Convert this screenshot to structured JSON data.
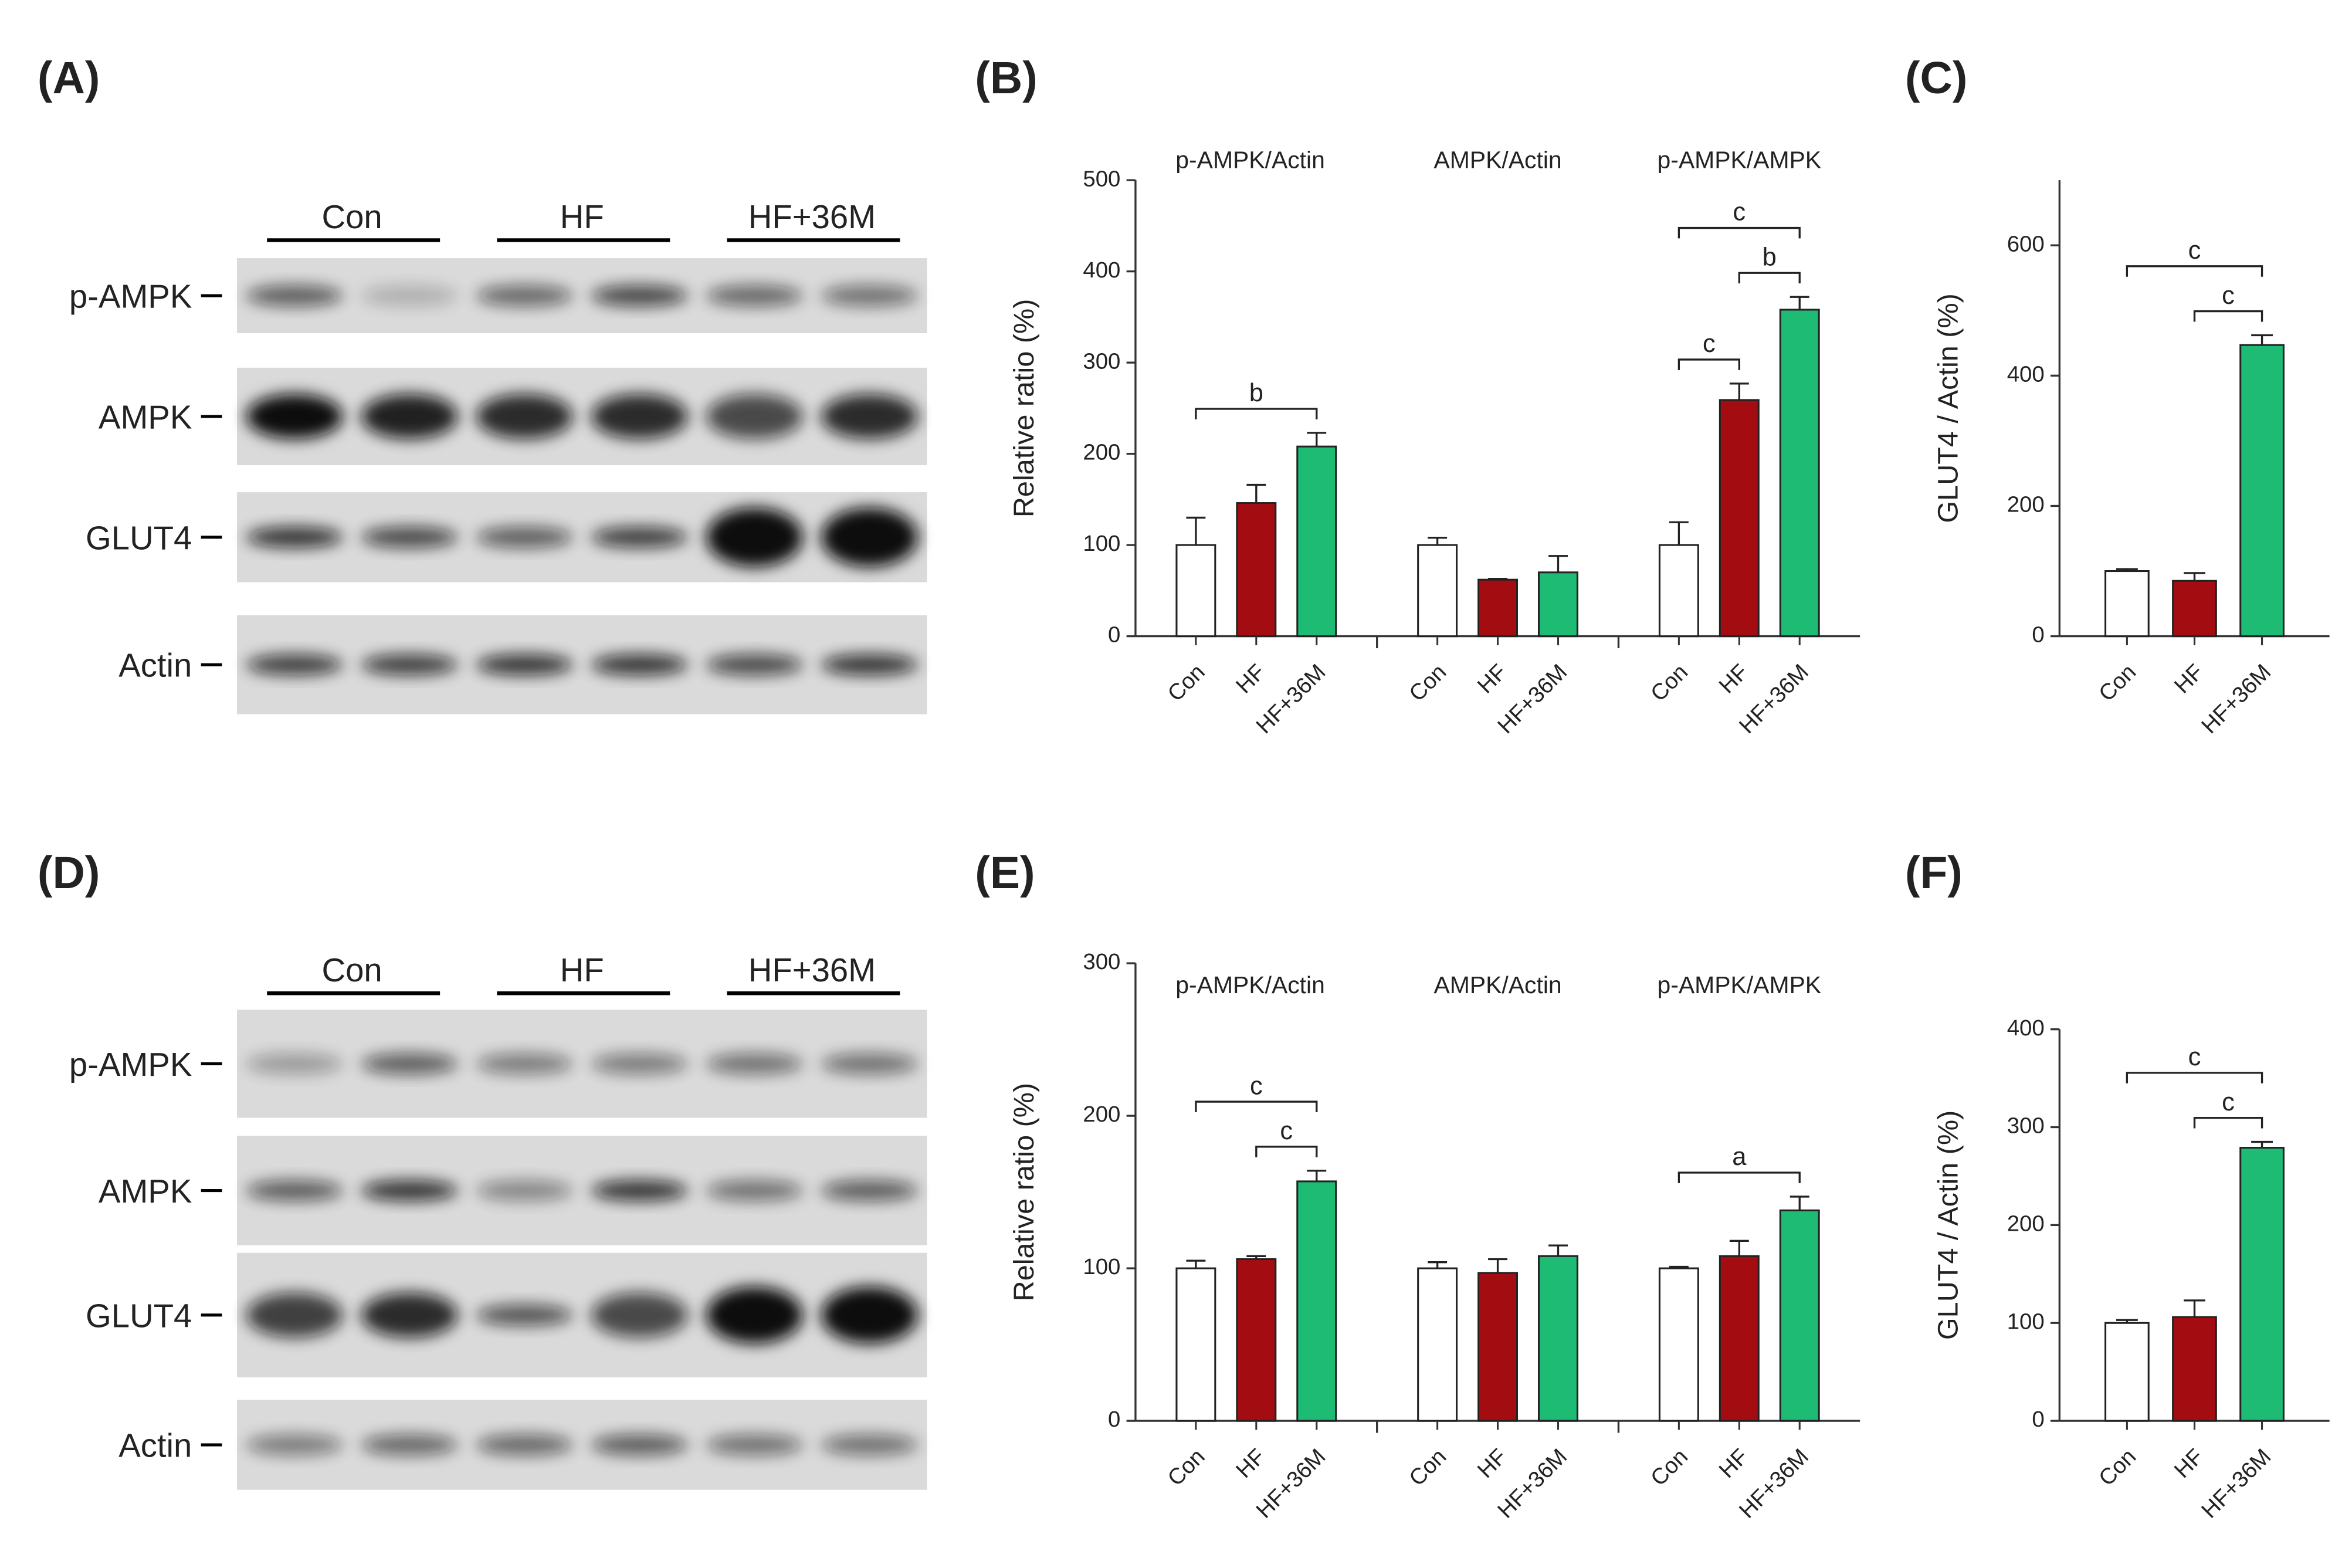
{
  "panel_labels": [
    "(A)",
    "(B)",
    "(C)",
    "(D)",
    "(E)",
    "(F)"
  ],
  "blots": [
    {
      "groups": [
        "Con",
        "HF",
        "HF+36M"
      ],
      "rows": [
        "p-AMPK",
        "AMPK",
        "GLUT4",
        "Actin"
      ]
    },
    {
      "groups": [
        "Con",
        "HF",
        "HF+36M"
      ],
      "rows": [
        "p-AMPK",
        "AMPK",
        "GLUT4",
        "Actin"
      ]
    }
  ],
  "chart_data": [
    {
      "type": "bar",
      "ylabel": "Relative ratio (%)",
      "ylim": [
        0,
        500
      ],
      "yticks": [
        0,
        100,
        200,
        300,
        400,
        500
      ],
      "colors": [
        "#ffffff",
        "#a30d12",
        "#1dbb73"
      ],
      "groups": [
        {
          "title": "p-AMPK/Actin",
          "categories": [
            "Con",
            "HF",
            "HF+36M"
          ],
          "values": [
            100,
            146,
            208
          ],
          "errors": [
            30,
            20,
            15
          ],
          "annotations": [
            {
              "text": "b",
              "from": 0,
              "to": 2
            }
          ]
        },
        {
          "title": "AMPK/Actin",
          "categories": [
            "Con",
            "HF",
            "HF+36M"
          ],
          "values": [
            100,
            62,
            70
          ],
          "errors": [
            8,
            1,
            18
          ],
          "annotations": []
        },
        {
          "title": "p-AMPK/AMPK",
          "categories": [
            "Con",
            "HF",
            "HF+36M"
          ],
          "values": [
            100,
            259,
            358
          ],
          "errors": [
            25,
            18,
            14
          ],
          "annotations": [
            {
              "text": "c",
              "from": 0,
              "to": 1
            },
            {
              "text": "b",
              "from": 1,
              "to": 2
            },
            {
              "text": "c",
              "from": 0,
              "to": 2
            }
          ]
        }
      ]
    },
    {
      "type": "bar",
      "ylabel": "GLUT4 / Actin (%)",
      "ylim": [
        0,
        700
      ],
      "yticks": [
        0,
        200,
        400,
        600
      ],
      "colors": [
        "#ffffff",
        "#a30d12",
        "#1dbb73"
      ],
      "groups": [
        {
          "categories": [
            "Con",
            "HF",
            "HF+36M"
          ],
          "values": [
            100,
            85,
            447
          ],
          "errors": [
            3,
            12,
            15
          ],
          "annotations": [
            {
              "text": "c",
              "from": 1,
              "to": 2
            },
            {
              "text": "c",
              "from": 0,
              "to": 2
            }
          ]
        }
      ]
    },
    {
      "type": "bar",
      "ylabel": "Relative ratio (%)",
      "ylim": [
        0,
        300
      ],
      "yticks": [
        0,
        100,
        200,
        300
      ],
      "colors": [
        "#ffffff",
        "#a30d12",
        "#1dbb73"
      ],
      "groups": [
        {
          "title": "p-AMPK/Actin",
          "categories": [
            "Con",
            "HF",
            "HF+36M"
          ],
          "values": [
            100,
            106,
            157
          ],
          "errors": [
            5,
            2,
            7
          ],
          "annotations": [
            {
              "text": "c",
              "from": 1,
              "to": 2
            },
            {
              "text": "c",
              "from": 0,
              "to": 2
            }
          ]
        },
        {
          "title": "AMPK/Actin",
          "categories": [
            "Con",
            "HF",
            "HF+36M"
          ],
          "values": [
            100,
            97,
            108
          ],
          "errors": [
            4,
            9,
            7
          ],
          "annotations": []
        },
        {
          "title": "p-AMPK/AMPK",
          "categories": [
            "Con",
            "HF",
            "HF+36M"
          ],
          "values": [
            100,
            108,
            138
          ],
          "errors": [
            1,
            10,
            9
          ],
          "annotations": [
            {
              "text": "a",
              "from": 0,
              "to": 2
            }
          ]
        }
      ]
    },
    {
      "type": "bar",
      "ylabel": "GLUT4 / Actin (%)",
      "ylim": [
        0,
        400
      ],
      "yticks": [
        0,
        100,
        200,
        300,
        400
      ],
      "colors": [
        "#ffffff",
        "#a30d12",
        "#1dbb73"
      ],
      "groups": [
        {
          "categories": [
            "Con",
            "HF",
            "HF+36M"
          ],
          "values": [
            100,
            106,
            279
          ],
          "errors": [
            3,
            17,
            6
          ],
          "annotations": [
            {
              "text": "c",
              "from": 1,
              "to": 2
            },
            {
              "text": "c",
              "from": 0,
              "to": 2
            }
          ]
        }
      ]
    }
  ]
}
